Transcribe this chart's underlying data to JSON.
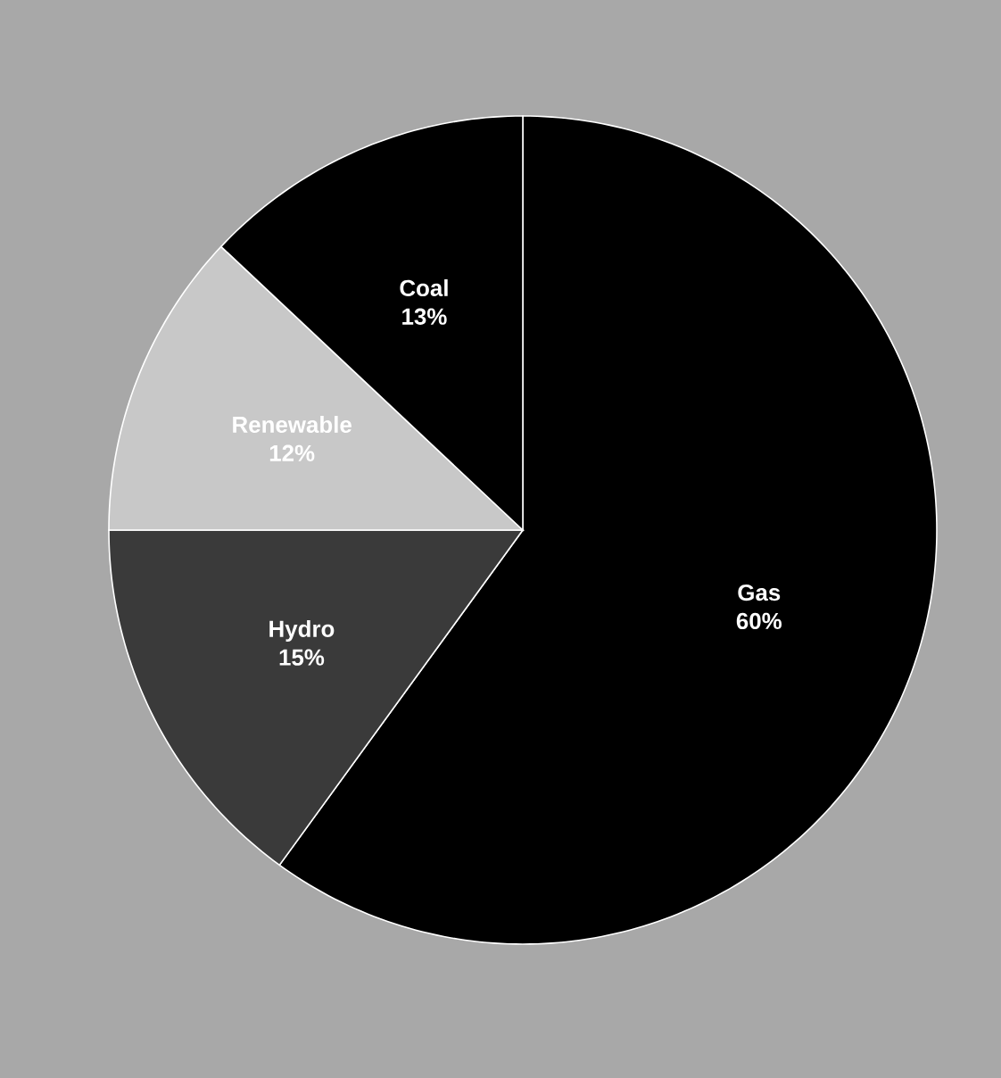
{
  "chart_data": {
    "type": "pie",
    "categories": [
      "Gas",
      "Hydro",
      "Renewable",
      "Coal"
    ],
    "values": [
      60,
      15,
      12,
      13
    ],
    "colors": [
      "#000000",
      "#3a3a3a",
      "#c8c8c8",
      "#000000"
    ],
    "value_labels": [
      "60%",
      "15%",
      "12%",
      "13%"
    ]
  }
}
